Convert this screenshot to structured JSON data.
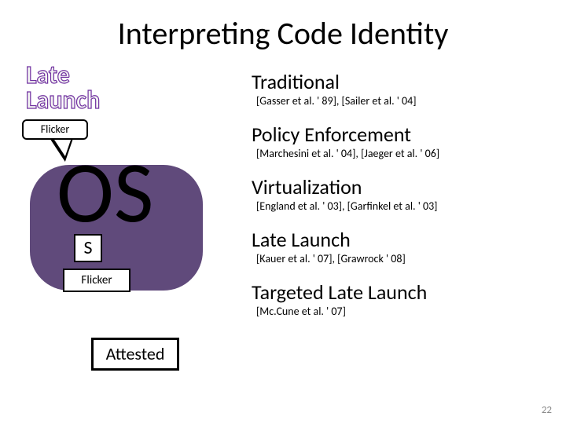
{
  "title": "Interpreting Code Identity",
  "page_number": "22",
  "colors": {
    "background": "#ffffff",
    "title_text": "#000000",
    "os_blob": "#604a7b",
    "late_launch_fill": "#f2f2f2",
    "late_launch_stroke": "#7030a0",
    "box_border": "#000000",
    "page_num": "#898989"
  },
  "left_diagram": {
    "late_launch_line1": "Late",
    "late_launch_line2": "Launch",
    "flicker_callout": "Flicker",
    "os_big": "OS",
    "s_box": "S",
    "flicker_box": "Flicker",
    "attested_box": "Attested"
  },
  "sections": [
    {
      "heading": "Traditional",
      "cite": "[Gasser et al. ' 89], [Sailer et al. ' 04]"
    },
    {
      "heading": "Policy Enforcement",
      "cite": "[Marchesini et al. ' 04], [Jaeger et al. ' 06]"
    },
    {
      "heading": "Virtualization",
      "cite": "[England et al. ' 03], [Garfinkel et al. ' 03]"
    },
    {
      "heading": "Late Launch",
      "cite": "[Kauer et al. ' 07], [Grawrock ' 08]"
    },
    {
      "heading": "Targeted Late Launch",
      "cite": "[Mc.Cune et al. ' 07]"
    }
  ]
}
